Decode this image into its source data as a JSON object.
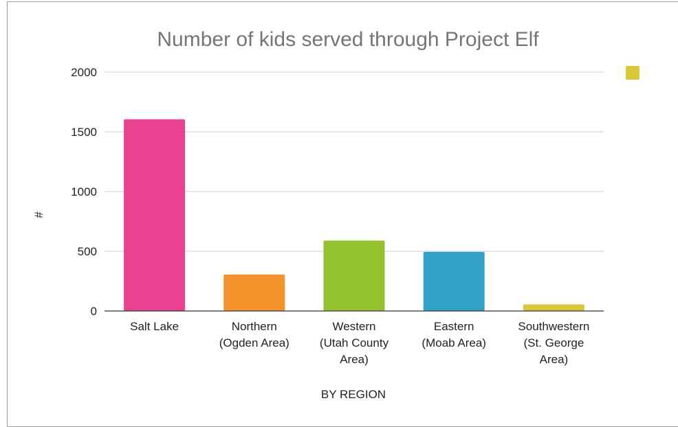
{
  "chart_data": {
    "type": "bar",
    "title": "Number of kids served through Project Elf",
    "xlabel": "BY REGION",
    "ylabel": "#",
    "ylim": [
      0,
      2000
    ],
    "yticks": [
      0,
      500,
      1000,
      1500,
      2000
    ],
    "categories": [
      [
        "Salt Lake"
      ],
      [
        "Northern",
        "(Ogden Area)"
      ],
      [
        "Western",
        "(Utah County",
        "Area)"
      ],
      [
        "Eastern",
        "(Moab Area)"
      ],
      [
        "Southwestern",
        "(St. George",
        "Area)"
      ]
    ],
    "values": [
      1605,
      305,
      590,
      495,
      55
    ],
    "colors": [
      "#ea4190",
      "#f4922b",
      "#94c12e",
      "#32a2c8",
      "#dcc73a"
    ],
    "grid": true,
    "legend": {
      "position": "top-right",
      "color": "#dcc73a"
    }
  }
}
